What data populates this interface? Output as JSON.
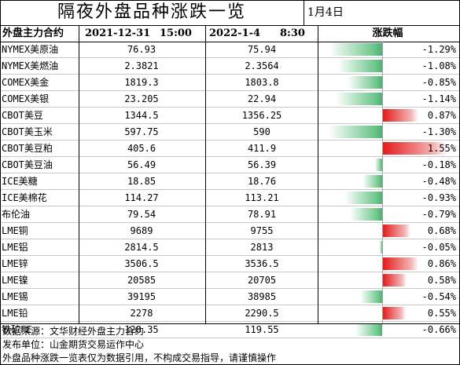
{
  "title": "隔夜外盘品种涨跌一览",
  "date": "1月4日",
  "header": {
    "name": "外盘主力合约",
    "prev_date": "2021-12-31",
    "prev_time": "15:00",
    "curr_date": "2022-1-4",
    "curr_time": "8:30",
    "change": "涨跌幅"
  },
  "colors": {
    "up": "#e31b1b",
    "down": "#4fb06f"
  },
  "rows": [
    {
      "name": "NYMEX美原油",
      "prev": "76.93",
      "curr": "75.94",
      "pct": "-1.29%",
      "change": -1.29
    },
    {
      "name": "NYMEX美燃油",
      "prev": "2.3821",
      "curr": "2.3564",
      "pct": "-1.08%",
      "change": -1.08
    },
    {
      "name": "COMEX美金",
      "prev": "1819.3",
      "curr": "1803.8",
      "pct": "-0.85%",
      "change": -0.85
    },
    {
      "name": "COMEX美银",
      "prev": "23.205",
      "curr": "22.94",
      "pct": "-1.14%",
      "change": -1.14
    },
    {
      "name": "CBOT美豆",
      "prev": "1344.5",
      "curr": "1356.25",
      "pct": "0.87%",
      "change": 0.87
    },
    {
      "name": "CBOT美玉米",
      "prev": "597.75",
      "curr": "590",
      "pct": "-1.30%",
      "change": -1.3
    },
    {
      "name": "CBOT美豆粕",
      "prev": "405.6",
      "curr": "411.9",
      "pct": "1.55%",
      "change": 1.55
    },
    {
      "name": "CBOT美豆油",
      "prev": "56.49",
      "curr": "56.39",
      "pct": "-0.18%",
      "change": -0.18
    },
    {
      "name": "ICE美糖",
      "prev": "18.85",
      "curr": "18.76",
      "pct": "-0.48%",
      "change": -0.48
    },
    {
      "name": "ICE美棉花",
      "prev": "114.27",
      "curr": "113.21",
      "pct": "-0.93%",
      "change": -0.93
    },
    {
      "name": "布伦油",
      "prev": "79.54",
      "curr": "78.91",
      "pct": "-0.79%",
      "change": -0.79
    },
    {
      "name": "LME铜",
      "prev": "9689",
      "curr": "9755",
      "pct": "0.68%",
      "change": 0.68
    },
    {
      "name": "LME铝",
      "prev": "2814.5",
      "curr": "2813",
      "pct": "-0.05%",
      "change": -0.05
    },
    {
      "name": "LME锌",
      "prev": "3506.5",
      "curr": "3536.5",
      "pct": "0.86%",
      "change": 0.86
    },
    {
      "name": "LME镍",
      "prev": "20585",
      "curr": "20705",
      "pct": "0.58%",
      "change": 0.58
    },
    {
      "name": "LME锡",
      "prev": "39195",
      "curr": "38985",
      "pct": "-0.54%",
      "change": -0.54
    },
    {
      "name": "LME铅",
      "prev": "2278",
      "curr": "2290.5",
      "pct": "0.55%",
      "change": 0.55
    },
    {
      "name": "铁矿FE",
      "prev": "120.35",
      "curr": "119.55",
      "pct": "-0.66%",
      "change": -0.66
    }
  ],
  "footer": {
    "source": "数据来源：文华财经外盘主力合约",
    "publisher": "发布单位：山金期货交易运作中心",
    "disclaimer": "外盘品种涨跌一览表仅为数据引用，不构成交易指导，请谨慎操作"
  }
}
